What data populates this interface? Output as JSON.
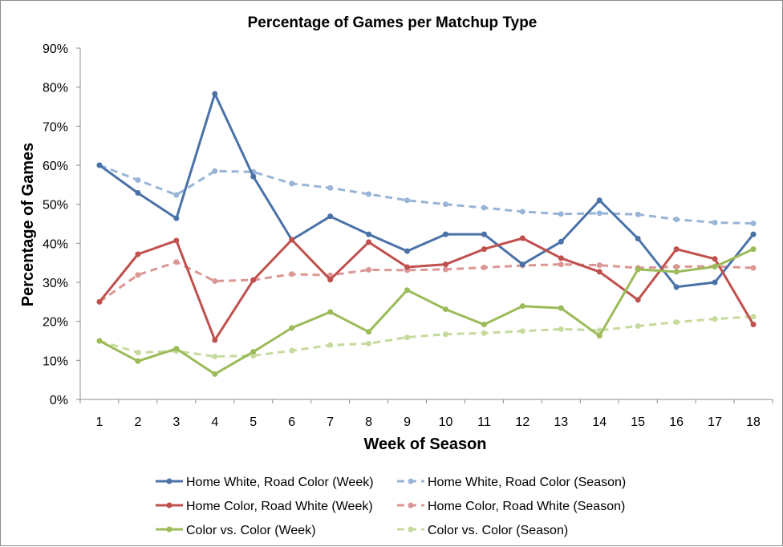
{
  "chart_data": {
    "type": "line",
    "title": "Percentage of Games per Matchup Type",
    "xlabel": "Week of Season",
    "ylabel": "Percentage of Games",
    "x": [
      1,
      2,
      3,
      4,
      5,
      6,
      7,
      8,
      9,
      10,
      11,
      12,
      13,
      14,
      15,
      16,
      17,
      18
    ],
    "ylim": [
      0,
      90
    ],
    "yticks": [
      "0%",
      "10%",
      "20%",
      "30%",
      "40%",
      "50%",
      "60%",
      "70%",
      "80%",
      "90%"
    ],
    "xticks": [
      "1",
      "2",
      "3",
      "4",
      "5",
      "6",
      "7",
      "8",
      "9",
      "10",
      "11",
      "12",
      "13",
      "14",
      "15",
      "16",
      "17",
      "18"
    ],
    "grid": false,
    "legend_position": "bottom",
    "series": [
      {
        "name": "Home White, Road Color (Week)",
        "color": "#4a72a8",
        "dashed": false,
        "values": [
          60.0,
          52.9,
          46.4,
          78.3,
          57.1,
          40.9,
          46.9,
          42.3,
          38.0,
          42.3,
          42.3,
          34.6,
          40.4,
          51.0,
          41.2,
          28.8,
          30.0,
          42.3
        ]
      },
      {
        "name": "Home White, Road Color (Season)",
        "color": "#98b4d6",
        "dashed": true,
        "values": [
          60.0,
          56.2,
          52.4,
          58.5,
          58.3,
          55.3,
          54.2,
          52.6,
          51.0,
          50.0,
          49.1,
          48.1,
          47.5,
          47.7,
          47.4,
          46.1,
          45.3,
          45.1
        ]
      },
      {
        "name": "Home Color, Road White (Week)",
        "color": "#c0504d",
        "dashed": false,
        "values": [
          25.0,
          37.2,
          40.7,
          15.2,
          30.6,
          40.9,
          30.7,
          40.3,
          33.9,
          34.6,
          38.5,
          41.3,
          36.2,
          32.7,
          25.5,
          38.5,
          36.0,
          19.2
        ]
      },
      {
        "name": "Home Color, Road White (Season)",
        "color": "#da9794",
        "dashed": true,
        "values": [
          25.0,
          31.9,
          35.2,
          30.3,
          30.6,
          32.1,
          31.8,
          33.2,
          33.1,
          33.3,
          33.8,
          34.3,
          34.6,
          34.4,
          33.7,
          34.0,
          34.1,
          33.7
        ]
      },
      {
        "name": "Color vs. Color (Week)",
        "color": "#9bbb59",
        "dashed": false,
        "values": [
          15.0,
          9.8,
          13.0,
          6.5,
          12.2,
          18.3,
          22.4,
          17.3,
          28.0,
          23.1,
          19.2,
          23.9,
          23.4,
          16.3,
          33.3,
          32.7,
          34.0,
          38.5
        ]
      },
      {
        "name": "Color vs. Color (Season)",
        "color": "#c6da9d",
        "dashed": true,
        "values": [
          15.0,
          12.0,
          12.4,
          11.0,
          11.2,
          12.5,
          13.9,
          14.3,
          15.9,
          16.7,
          17.0,
          17.5,
          18.0,
          17.7,
          18.8,
          19.8,
          20.6,
          21.2
        ]
      }
    ]
  }
}
